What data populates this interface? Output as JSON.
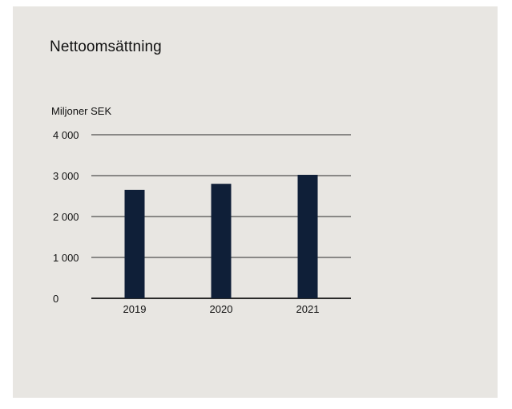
{
  "colors": {
    "background": "#e8e6e2",
    "bar": "#0f1f38",
    "gridline": "#2a2a2a",
    "text": "#111111"
  },
  "chart_data": {
    "type": "bar",
    "title": "Nettoomsättning",
    "ylabel": "Miljoner SEK",
    "xlabel": "",
    "categories": [
      "2019",
      "2020",
      "2021"
    ],
    "values": [
      2650,
      2800,
      3020
    ],
    "ylim": [
      0,
      4000
    ],
    "yticks": [
      0,
      1000,
      2000,
      3000,
      4000
    ],
    "ytick_labels": [
      "0",
      "1 000",
      "2 000",
      "3 000",
      "4 000"
    ],
    "grid": true,
    "legend": "none"
  }
}
